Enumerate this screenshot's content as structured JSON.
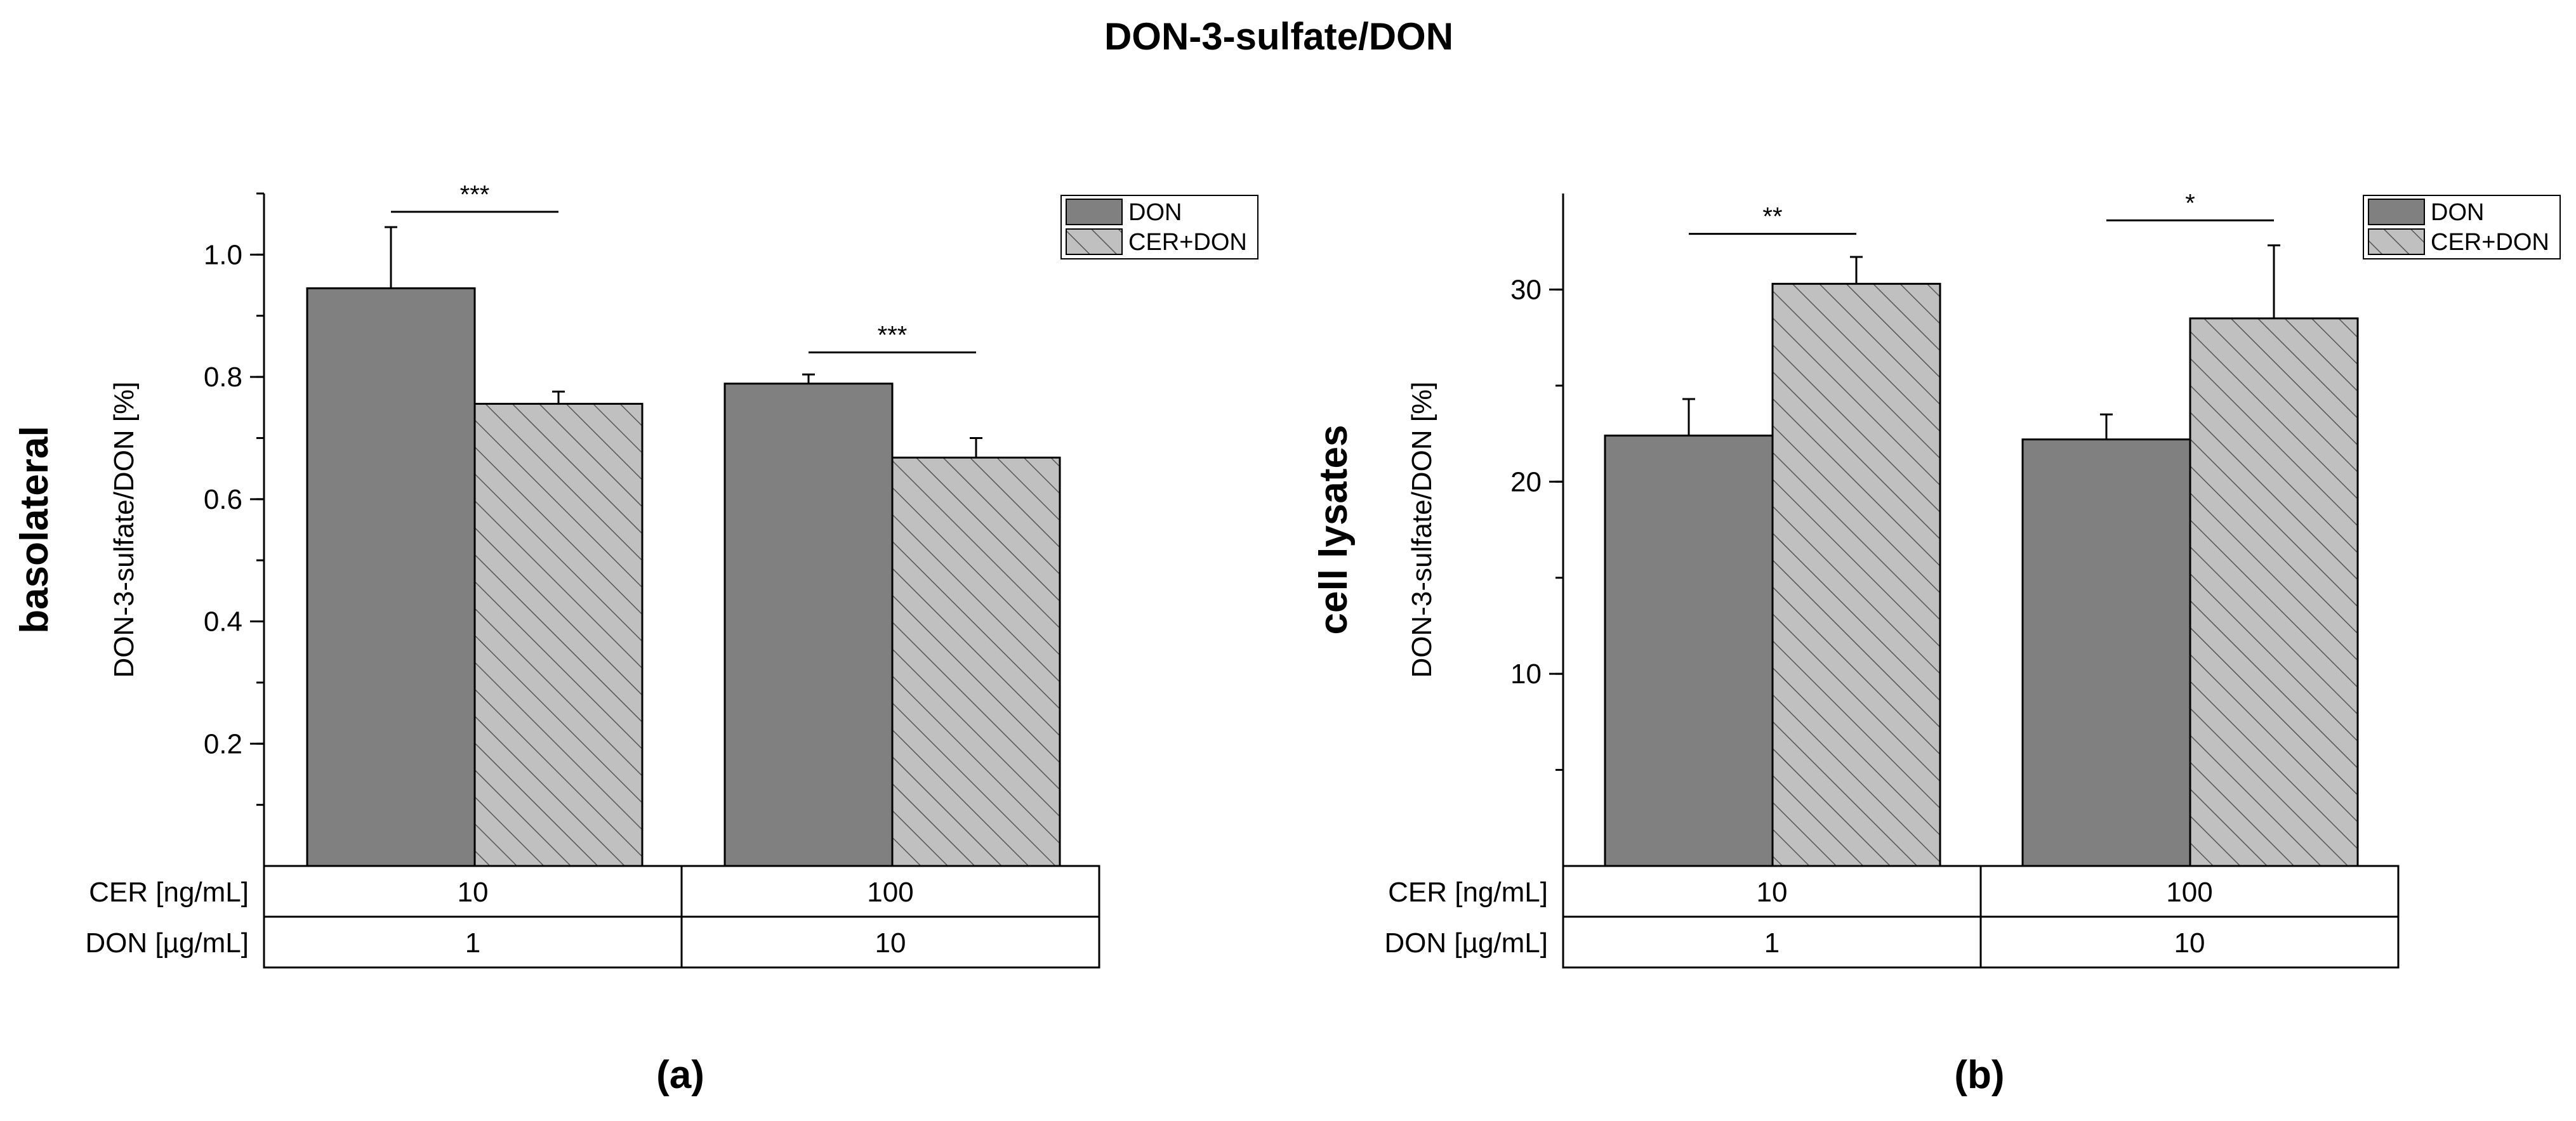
{
  "figure": {
    "title": "DON-3-sulfate/DON"
  },
  "colors": {
    "don_fill": "#808080",
    "cer_don_fill": "#c0c0c0",
    "hatch": "#555555",
    "axis": "#000000"
  },
  "chart_data": [
    {
      "type": "bar",
      "panel_label": "(a)",
      "row_title": "basolateral",
      "ylabel": "DON-3-sulfate/DON [%]",
      "ylim": [
        0,
        1.1
      ],
      "yticks": [
        0.2,
        0.4,
        0.6,
        0.8,
        1.0
      ],
      "ytick_labels": [
        "0.2",
        "0.4",
        "0.6",
        "0.8",
        "1.0"
      ],
      "yminor_step": 0.1,
      "categories": [
        "10",
        "100"
      ],
      "category_table": {
        "rows": [
          {
            "label": "CER [ng/mL]",
            "values": [
              "10",
              "100"
            ]
          },
          {
            "label": "DON [µg/mL]",
            "values": [
              "1",
              "10"
            ]
          }
        ]
      },
      "series": [
        {
          "name": "DON",
          "values": [
            0.945,
            0.789
          ],
          "errors": [
            0.1,
            0.015
          ],
          "style": "solid"
        },
        {
          "name": "CER+DON",
          "values": [
            0.756,
            0.668
          ],
          "errors": [
            0.02,
            0.032
          ],
          "style": "hatched"
        }
      ],
      "significance": [
        {
          "group": 0,
          "label": "***",
          "y": 1.07
        },
        {
          "group": 1,
          "label": "***",
          "y": 0.84
        }
      ],
      "legend": {
        "position": "top-right",
        "entries": [
          "DON",
          "CER+DON"
        ]
      },
      "grid": false
    },
    {
      "type": "bar",
      "panel_label": "(b)",
      "row_title": "cell lysates",
      "ylabel": "DON-3-sulfate/DON [%]",
      "ylim": [
        0,
        35
      ],
      "yticks": [
        10,
        20,
        30
      ],
      "ytick_labels": [
        "10",
        "20",
        "30"
      ],
      "yminor_step": 5,
      "categories": [
        "10",
        "100"
      ],
      "category_table": {
        "rows": [
          {
            "label": "CER [ng/mL]",
            "values": [
              "10",
              "100"
            ]
          },
          {
            "label": "DON [µg/mL]",
            "values": [
              "1",
              "10"
            ]
          }
        ]
      },
      "series": [
        {
          "name": "DON",
          "values": [
            22.4,
            22.2
          ],
          "errors": [
            1.9,
            1.3
          ],
          "style": "solid"
        },
        {
          "name": "CER+DON",
          "values": [
            30.3,
            28.5
          ],
          "errors": [
            1.4,
            3.8
          ],
          "style": "hatched"
        }
      ],
      "significance": [
        {
          "group": 0,
          "label": "**",
          "y": 32.9
        },
        {
          "group": 1,
          "label": "*",
          "y": 33.6
        }
      ],
      "legend": {
        "position": "top-right",
        "entries": [
          "DON",
          "CER+DON"
        ]
      },
      "grid": false
    }
  ]
}
